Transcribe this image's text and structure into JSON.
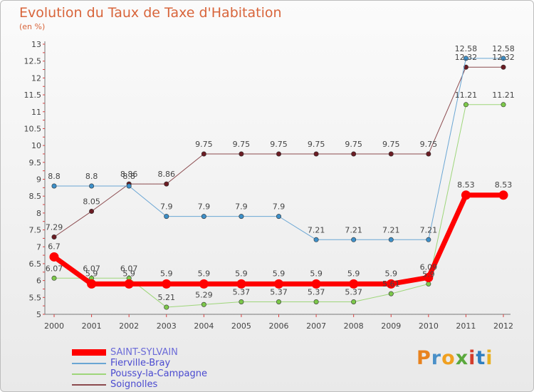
{
  "title": "Evolution du Taux de Taxe d'Habitation",
  "unit_label": "(en %)",
  "logo": {
    "letters": [
      {
        "ch": "P",
        "color": "#e8821e"
      },
      {
        "ch": "r",
        "color": "#4a90c8"
      },
      {
        "ch": "o",
        "color": "#f0a020"
      },
      {
        "ch": "x",
        "color": "#5aa83c"
      },
      {
        "ch": "i",
        "color": "#d33c2c"
      },
      {
        "ch": "t",
        "color": "#2f7fc0"
      },
      {
        "ch": "i",
        "color": "#e8b020"
      }
    ]
  },
  "chart_data": {
    "type": "line",
    "x": [
      "2000",
      "2001",
      "2002",
      "2003",
      "2004",
      "2005",
      "2006",
      "2007",
      "2008",
      "2009",
      "2010",
      "2011",
      "2012"
    ],
    "ylim": [
      5,
      13
    ],
    "yticks": [
      "5",
      "5.5",
      "6",
      "6.5",
      "7",
      "7.5",
      "8",
      "8.5",
      "9",
      "9.5",
      "10",
      "10.5",
      "11",
      "11.5",
      "12",
      "12.5",
      "13"
    ],
    "grid": false,
    "legend_position": "bottom-left",
    "series": [
      {
        "name": "Soignolles",
        "color": "#6b1c23",
        "line_color": "#8b4a4e",
        "width": 1,
        "values": [
          7.29,
          8.05,
          8.86,
          8.86,
          9.75,
          9.75,
          9.75,
          9.75,
          9.75,
          9.75,
          9.75,
          12.32,
          12.32
        ],
        "labels": [
          "7.29",
          "8.05",
          "8.86",
          "8.86",
          "9.75",
          "9.75",
          "9.75",
          "9.75",
          "9.75",
          "9.75",
          "9.75",
          "12.32",
          "12.32"
        ]
      },
      {
        "name": "Poussy-la-Campagne",
        "color": "#7cc84a",
        "line_color": "#9ed67a",
        "width": 1,
        "values": [
          6.07,
          6.07,
          6.07,
          5.21,
          5.29,
          5.37,
          5.37,
          5.37,
          5.37,
          5.61,
          5.9,
          11.21,
          11.21
        ],
        "labels": [
          "6.07",
          "6.07",
          "6.07",
          "5.21",
          "5.29",
          "5.37",
          "5.37",
          "5.37",
          "5.37",
          "5.61",
          "5.9",
          "11.21",
          "11.21"
        ]
      },
      {
        "name": "Fierville-Bray",
        "color": "#3d8fc8",
        "line_color": "#6aa6d4",
        "width": 1,
        "values": [
          8.8,
          8.8,
          8.8,
          7.9,
          7.9,
          7.9,
          7.9,
          7.21,
          7.21,
          7.21,
          7.21,
          12.58,
          12.58
        ],
        "labels": [
          "8.8",
          "8.8",
          "8.8",
          "7.9",
          "7.9",
          "7.9",
          "7.9",
          "7.21",
          "7.21",
          "7.21",
          "7.21",
          "12.58",
          "12.58"
        ]
      },
      {
        "name": "SAINT-SYLVAIN",
        "color": "#ff0000",
        "line_color": "#ff0000",
        "width": 7,
        "values": [
          6.7,
          5.9,
          5.9,
          5.9,
          5.9,
          5.9,
          5.9,
          5.9,
          5.9,
          5.9,
          6.09,
          8.53,
          8.53
        ],
        "labels": [
          "6.7",
          "5.9",
          "5.9",
          "5.9",
          "5.9",
          "5.9",
          "5.9",
          "5.9",
          "5.9",
          "5.9",
          "6.09",
          "8.53",
          "8.53"
        ]
      }
    ]
  },
  "legend": [
    {
      "name": "SAINT-SYLVAIN",
      "color": "#ff0000",
      "thick": true
    },
    {
      "name": "Fierville-Bray",
      "color": "#6aa6d4",
      "thick": false
    },
    {
      "name": "Poussy-la-Campagne",
      "color": "#9ed67a",
      "thick": false
    },
    {
      "name": "Soignolles",
      "color": "#8b4a4e",
      "thick": false
    }
  ]
}
